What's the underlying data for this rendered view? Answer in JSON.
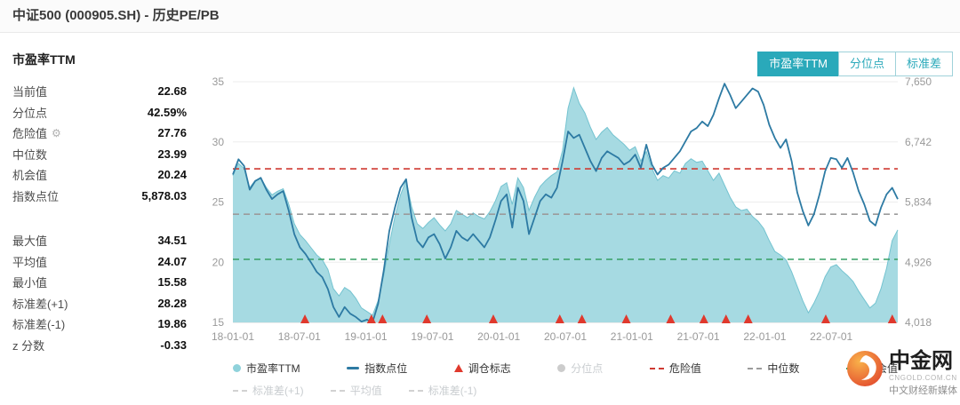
{
  "header": {
    "title": "中证500 (000905.SH) - 历史PE/PB"
  },
  "panel": {
    "title": "市盈率TTM",
    "groups": [
      [
        {
          "label": "当前值",
          "value": "22.68"
        },
        {
          "label": "分位点",
          "value": "42.59%"
        },
        {
          "label": "危险值",
          "value": "27.76",
          "gear": true
        },
        {
          "label": "中位数",
          "value": "23.99"
        },
        {
          "label": "机会值",
          "value": "20.24"
        },
        {
          "label": "指数点位",
          "value": "5,878.03"
        }
      ],
      [
        {
          "label": "最大值",
          "value": "34.51"
        },
        {
          "label": "平均值",
          "value": "24.07"
        },
        {
          "label": "最小值",
          "value": "15.58"
        },
        {
          "label": "标准差(+1)",
          "value": "28.28"
        },
        {
          "label": "标准差(-1)",
          "value": "19.86"
        },
        {
          "label": "z 分数",
          "value": "-0.33"
        }
      ]
    ]
  },
  "tabs": [
    {
      "id": "pe-ttm",
      "label": "市盈率TTM",
      "active": true
    },
    {
      "id": "percentile",
      "label": "分位点",
      "active": false
    },
    {
      "id": "stddev",
      "label": "标准差",
      "active": false
    }
  ],
  "chart_data": {
    "type": "line+area",
    "x_start": "2018-01",
    "x_end": "2023-01",
    "x_tick_labels": [
      "18-01-01",
      "18-07-01",
      "19-01-01",
      "19-07-01",
      "20-01-01",
      "20-07-01",
      "21-01-01",
      "21-07-01",
      "22-01-01",
      "22-07-01"
    ],
    "y_left": {
      "min": 15,
      "max": 35,
      "ticks": [
        15,
        20,
        25,
        30,
        35
      ]
    },
    "y_right": {
      "min": 4018,
      "max": 7650,
      "tick_labels": [
        "4,018",
        "4,926",
        "5,834",
        "6,742",
        "7,650"
      ]
    },
    "grid": true,
    "series": [
      {
        "id": "pe-ttm",
        "name": "市盈率TTM",
        "type": "area",
        "axis": "left",
        "color": "#74c3d0",
        "fill": "#a6dae2",
        "values": [
          27.2,
          28.2,
          27.8,
          26.2,
          26.8,
          27.0,
          26.2,
          25.6,
          25.9,
          26.1,
          24.8,
          23.2,
          22.3,
          21.8,
          21.2,
          20.6,
          20.2,
          19.4,
          17.8,
          17.2,
          17.9,
          17.6,
          17.0,
          16.2,
          15.9,
          15.6,
          16.8,
          18.9,
          21.5,
          23.8,
          25.6,
          26.8,
          24.6,
          23.2,
          22.8,
          23.3,
          23.7,
          23.1,
          22.6,
          23.2,
          24.3,
          24.0,
          23.7,
          24.1,
          23.8,
          23.6,
          24.2,
          25.1,
          26.3,
          26.6,
          24.8,
          27.0,
          26.2,
          24.3,
          25.4,
          26.3,
          26.8,
          27.2,
          27.5,
          29.3,
          32.8,
          34.5,
          33.2,
          32.4,
          31.2,
          30.2,
          30.8,
          31.2,
          30.6,
          30.2,
          29.8,
          29.3,
          29.6,
          28.4,
          29.2,
          27.8,
          26.8,
          27.2,
          27.0,
          27.6,
          27.4,
          28.2,
          28.6,
          28.3,
          28.4,
          27.6,
          26.8,
          27.4,
          26.4,
          25.4,
          24.6,
          24.3,
          24.4,
          23.8,
          23.4,
          22.8,
          21.8,
          20.9,
          20.6,
          20.2,
          19.2,
          18.0,
          16.8,
          15.8,
          16.6,
          17.6,
          18.8,
          19.6,
          19.8,
          19.3,
          18.9,
          18.4,
          17.6,
          16.9,
          16.2,
          16.6,
          17.8,
          19.5,
          21.8,
          22.68
        ]
      },
      {
        "id": "index-points",
        "name": "指数点位",
        "type": "line",
        "axis": "right",
        "color": "#2d7aa3",
        "values": [
          6250,
          6480,
          6380,
          6020,
          6150,
          6200,
          6020,
          5880,
          5950,
          6000,
          5700,
          5350,
          5150,
          5050,
          4920,
          4780,
          4700,
          4520,
          4250,
          4100,
          4250,
          4150,
          4100,
          4030,
          4060,
          4018,
          4300,
          4800,
          5400,
          5750,
          6050,
          6180,
          5600,
          5250,
          5150,
          5300,
          5350,
          5200,
          4980,
          5150,
          5400,
          5300,
          5250,
          5350,
          5250,
          5150,
          5300,
          5560,
          5850,
          5950,
          5450,
          6050,
          5850,
          5350,
          5600,
          5850,
          5950,
          5900,
          6050,
          6450,
          6900,
          6800,
          6850,
          6650,
          6450,
          6300,
          6500,
          6600,
          6550,
          6500,
          6400,
          6450,
          6550,
          6350,
          6700,
          6400,
          6250,
          6350,
          6400,
          6500,
          6600,
          6750,
          6900,
          6950,
          7050,
          6980,
          7150,
          7400,
          7620,
          7450,
          7250,
          7350,
          7450,
          7550,
          7500,
          7300,
          7000,
          6800,
          6650,
          6780,
          6450,
          5980,
          5700,
          5480,
          5650,
          5950,
          6300,
          6500,
          6480,
          6350,
          6500,
          6280,
          6000,
          5800,
          5550,
          5480,
          5750,
          5950,
          6050,
          5878
        ]
      }
    ],
    "markers": {
      "id": "rebalance",
      "name": "调仓标志",
      "color": "#e0392d",
      "dates": [
        "2018-07",
        "2019-01",
        "2019-02",
        "2019-06",
        "2019-12",
        "2020-06",
        "2020-08",
        "2020-12",
        "2021-04",
        "2021-07",
        "2021-09",
        "2021-11",
        "2022-06",
        "2022-12"
      ]
    },
    "hlines": [
      {
        "id": "danger",
        "name": "危险值",
        "value": 27.76,
        "color": "#cf3a32"
      },
      {
        "id": "median",
        "name": "中位数",
        "value": 23.99,
        "color": "#9b9b9b"
      },
      {
        "id": "opportunity",
        "name": "机会值",
        "value": 20.24,
        "color": "#37a065"
      }
    ]
  },
  "legend": {
    "rows": [
      [
        {
          "id": "pe-ttm",
          "label": "市盈率TTM",
          "icon": "circle",
          "color": "#8fd2db",
          "muted": false
        },
        {
          "id": "index-points",
          "label": "指数点位",
          "icon": "line",
          "color": "#2d7aa3",
          "muted": false
        },
        {
          "id": "rebalance",
          "label": "调仓标志",
          "icon": "triangle",
          "color": "#e0392d",
          "muted": false
        },
        {
          "id": "percentile",
          "label": "分位点",
          "icon": "circle",
          "color": "#cccccc",
          "muted": true
        },
        {
          "id": "danger",
          "label": "危险值",
          "icon": "dash",
          "color": "#cf3a32",
          "muted": false
        },
        {
          "id": "median",
          "label": "中位数",
          "icon": "dash",
          "color": "#9b9b9b",
          "muted": false
        },
        {
          "id": "opportunity",
          "label": "机会值",
          "icon": "dash",
          "color": "#37a065",
          "muted": false
        }
      ],
      [
        {
          "id": "std-plus-1",
          "label": "标准差(+1)",
          "icon": "dash",
          "color": "#d2d2d2",
          "muted": true
        },
        {
          "id": "mean",
          "label": "平均值",
          "icon": "dash",
          "color": "#d2d2d2",
          "muted": true
        },
        {
          "id": "std-minus-1",
          "label": "标准差(-1)",
          "icon": "dash",
          "color": "#d2d2d2",
          "muted": true
        }
      ]
    ]
  },
  "watermark": {
    "name": "中金网",
    "sub1": "CNGOLD.COM.CN",
    "sub2": "中文财经新媒体"
  }
}
